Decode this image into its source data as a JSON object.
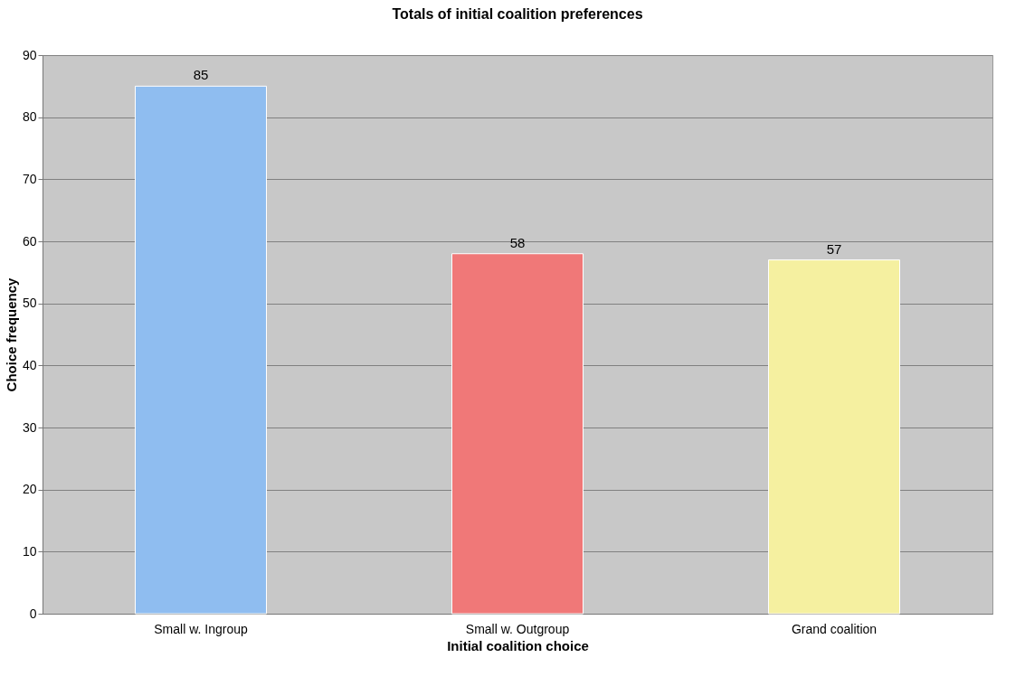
{
  "chart_data": {
    "type": "bar",
    "title": "Totals of initial coalition preferences",
    "xlabel": "Initial coalition choice",
    "ylabel": "Choice frequency",
    "categories": [
      "Small w. Ingroup",
      "Small w. Outgroup",
      "Grand coalition"
    ],
    "values": [
      85,
      58,
      57
    ],
    "colors": [
      "#8fbdf0",
      "#f07878",
      "#f5f0a0"
    ],
    "ylim": [
      0,
      90
    ],
    "yticks": [
      0,
      10,
      20,
      30,
      40,
      50,
      60,
      70,
      80,
      90
    ],
    "grid": "y",
    "data_labels": true
  }
}
